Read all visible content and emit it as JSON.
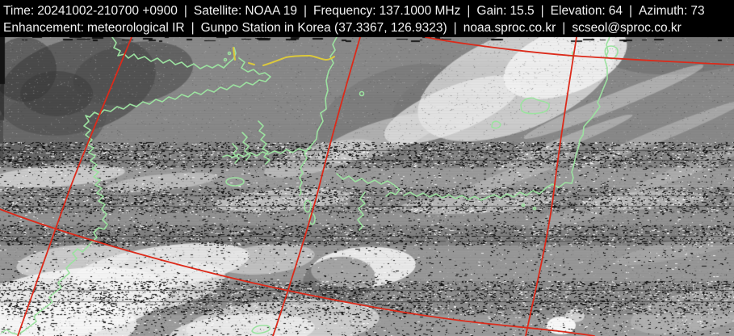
{
  "header": {
    "separator": "|",
    "line1": [
      {
        "label": "Time:",
        "value": "20241002-210700 +0900"
      },
      {
        "label": "Satellite:",
        "value": "NOAA 19"
      },
      {
        "label": "Frequency:",
        "value": "137.1000 MHz"
      },
      {
        "label": "Gain:",
        "value": "15.5"
      },
      {
        "label": "Elevation:",
        "value": "64"
      },
      {
        "label": "Azimuth:",
        "value": "73"
      }
    ],
    "line2": [
      {
        "label": "Enhancement:",
        "value": "meteorological IR"
      },
      {
        "label": "",
        "value": "Gunpo Station in Korea (37.3367, 126.9323)"
      },
      {
        "label": "",
        "value": "noaa.sproc.co.kr"
      },
      {
        "label": "",
        "value": "scseol@sproc.co.kr"
      }
    ]
  },
  "image": {
    "overlay": {
      "grid_color": "#dc2a1a",
      "coastline_color": "#9ce2a0",
      "border_color": "#dcc93c"
    }
  }
}
